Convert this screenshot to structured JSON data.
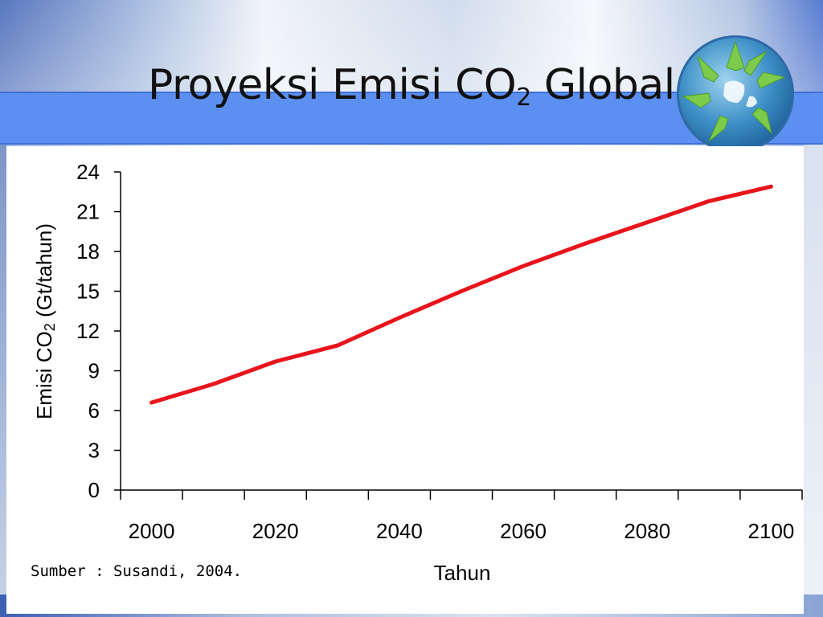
{
  "slide": {
    "title_main": "Proyeksi Emisi CO",
    "title_sub": "2",
    "title_end": " Global",
    "source": "Sumber : Susandi, 2004.",
    "colors": {
      "band": "#5b8ff0",
      "line": "#e8141c"
    },
    "logo_icon": "globe-hands-icon"
  },
  "chart_data": {
    "type": "line",
    "xlabel": "Tahun",
    "ylabel_main": "Emisi CO",
    "ylabel_sub": "2",
    "ylabel_end": " (Gt/tahun)",
    "xlim": [
      1995,
      2105
    ],
    "ylim": [
      0,
      24
    ],
    "xticks": [
      2000,
      2020,
      2040,
      2060,
      2080,
      2100
    ],
    "xtick_labels": [
      "2000",
      "2020",
      "2040",
      "2060",
      "2080",
      "2100"
    ],
    "yticks": [
      0,
      3,
      6,
      9,
      12,
      15,
      18,
      21,
      24
    ],
    "ytick_labels": [
      "0",
      "3",
      "6",
      "9",
      "12",
      "15",
      "18",
      "21",
      "24"
    ],
    "grid": false,
    "series": [
      {
        "x": [
          2000,
          2010,
          2020,
          2030,
          2040,
          2050,
          2060,
          2070,
          2080,
          2090,
          2100
        ],
        "values": [
          6.6,
          8.0,
          9.7,
          10.9,
          13.0,
          15.0,
          16.9,
          18.6,
          20.2,
          21.8,
          22.9
        ]
      }
    ]
  }
}
